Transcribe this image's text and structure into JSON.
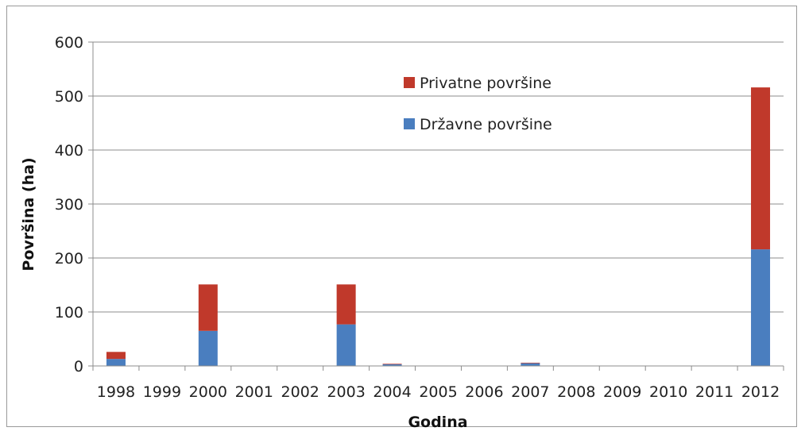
{
  "chart_data": {
    "type": "bar",
    "stacked": true,
    "title": "",
    "xlabel": "Godina",
    "ylabel": "Površina (ha)",
    "ylim": [
      0,
      600
    ],
    "yticks": [
      0,
      100,
      200,
      300,
      400,
      500,
      600
    ],
    "grid": true,
    "legend_position": "top-center",
    "categories": [
      "1998",
      "1999",
      "2000",
      "2001",
      "2002",
      "2003",
      "2004",
      "2005",
      "2006",
      "2007",
      "2008",
      "2009",
      "2010",
      "2011",
      "2012"
    ],
    "series": [
      {
        "name": "Državne površine",
        "color": "#4a7ebf",
        "values": [
          13,
          0,
          65,
          0,
          0,
          77,
          3,
          0,
          0,
          5,
          0,
          0,
          0,
          0,
          216
        ]
      },
      {
        "name": "Privatne površine",
        "color": "#c0392b",
        "values": [
          13,
          0,
          86,
          0,
          0,
          74,
          1,
          0,
          0,
          1,
          0,
          0,
          0,
          0,
          300
        ]
      }
    ],
    "legend_order": [
      "Privatne površine",
      "Državne površine"
    ]
  }
}
